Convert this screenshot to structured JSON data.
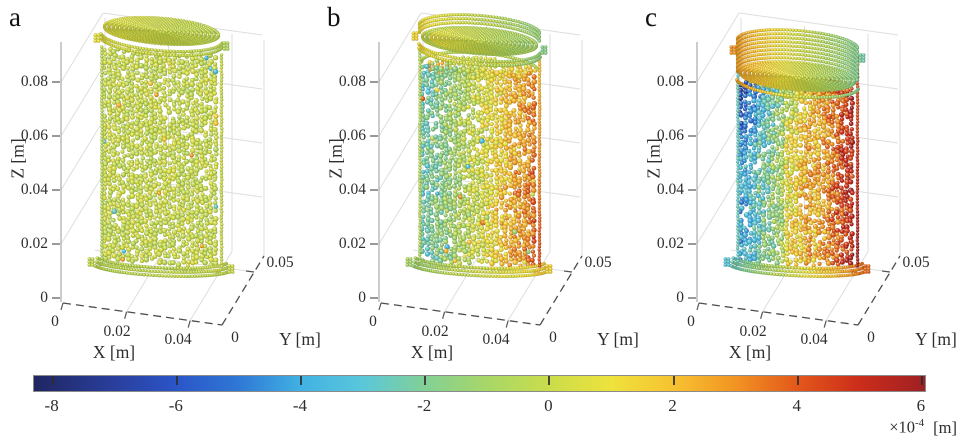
{
  "figure": {
    "type": "scientific-figure",
    "background": "#ffffff"
  },
  "subplots": [
    {
      "label": "a"
    },
    {
      "label": "b"
    },
    {
      "label": "c"
    }
  ],
  "axes": {
    "x": {
      "label": "X [m]",
      "ticks": [
        "0",
        "0.02",
        "0.04"
      ]
    },
    "y": {
      "label": "Y [m]",
      "ticks": [
        "0",
        "0.05"
      ]
    },
    "z": {
      "label": "Z [m]",
      "ticks": [
        "0",
        "0.02",
        "0.04",
        "0.06",
        "0.08"
      ]
    }
  },
  "colorbar": {
    "ticks": [
      "-8",
      "-6",
      "-4",
      "-2",
      "0",
      "2",
      "4",
      "6"
    ],
    "exponent": {
      "base": "×10",
      "power": "-4",
      "unit": "[m]"
    },
    "stops": [
      {
        "v": -8.3,
        "c": "#1f2661"
      },
      {
        "v": -7.0,
        "c": "#2a3f9d"
      },
      {
        "v": -6.0,
        "c": "#2b55c8"
      },
      {
        "v": -5.0,
        "c": "#2f78d5"
      },
      {
        "v": -4.0,
        "c": "#41b2e3"
      },
      {
        "v": -3.0,
        "c": "#5ac7da"
      },
      {
        "v": -2.0,
        "c": "#83d096"
      },
      {
        "v": -1.0,
        "c": "#a8d767"
      },
      {
        "v": 0.0,
        "c": "#cadd4b"
      },
      {
        "v": 1.0,
        "c": "#eee23c"
      },
      {
        "v": 2.0,
        "c": "#f7c231"
      },
      {
        "v": 3.0,
        "c": "#f29422"
      },
      {
        "v": 4.0,
        "c": "#e3571b"
      },
      {
        "v": 5.0,
        "c": "#cb2d1a"
      },
      {
        "v": 6.05,
        "c": "#9e2023"
      }
    ]
  },
  "chart_data": {
    "type": "scatter",
    "subtype": "3D DEM particle plots of a cut-away cylindrical container, particles coloured by displacement",
    "subplots": [
      {
        "label": "a",
        "displacement_range_1e-4_m": [
          -0.5,
          0.5
        ],
        "pattern": "near-zero displacement everywhere: uniform yellow-green bed with sparse cyan/orange outliers; lid resting on full bed"
      },
      {
        "label": "b",
        "displacement_range_1e-4_m": [
          -5,
          5
        ],
        "pattern": "negative displacement (cyan/blue) on low-X side grading through green centre to positive (orange/red, strongest at lower right) on high-X side; bed surface settled slightly below lid"
      },
      {
        "label": "c",
        "displacement_range_1e-4_m": [
          -8,
          6
        ],
        "pattern": "strong negative (dark blue) upper low-X side, near-zero yellow central band, strong positive (dark red) high-X side; bed settled further, tall lid skirt exposed"
      }
    ],
    "axes": {
      "x": {
        "label": "X [m]",
        "range": [
          0,
          0.05
        ],
        "tick_values": [
          0,
          0.02,
          0.04
        ]
      },
      "y": {
        "label": "Y [m]",
        "range": [
          0,
          0.05
        ],
        "tick_values": [
          0,
          0.05
        ]
      },
      "z": {
        "label": "Z [m]",
        "range": [
          0,
          0.09
        ],
        "tick_values": [
          0,
          0.02,
          0.04,
          0.06,
          0.08
        ]
      }
    },
    "colorbar": {
      "label": "displacement ×10^-4 [m]",
      "range": [
        -8,
        6
      ],
      "tick_values": [
        -8,
        -6,
        -4,
        -2,
        0,
        2,
        4,
        6
      ],
      "orientation": "horizontal-bottom"
    },
    "grid": true,
    "legend": "none"
  }
}
